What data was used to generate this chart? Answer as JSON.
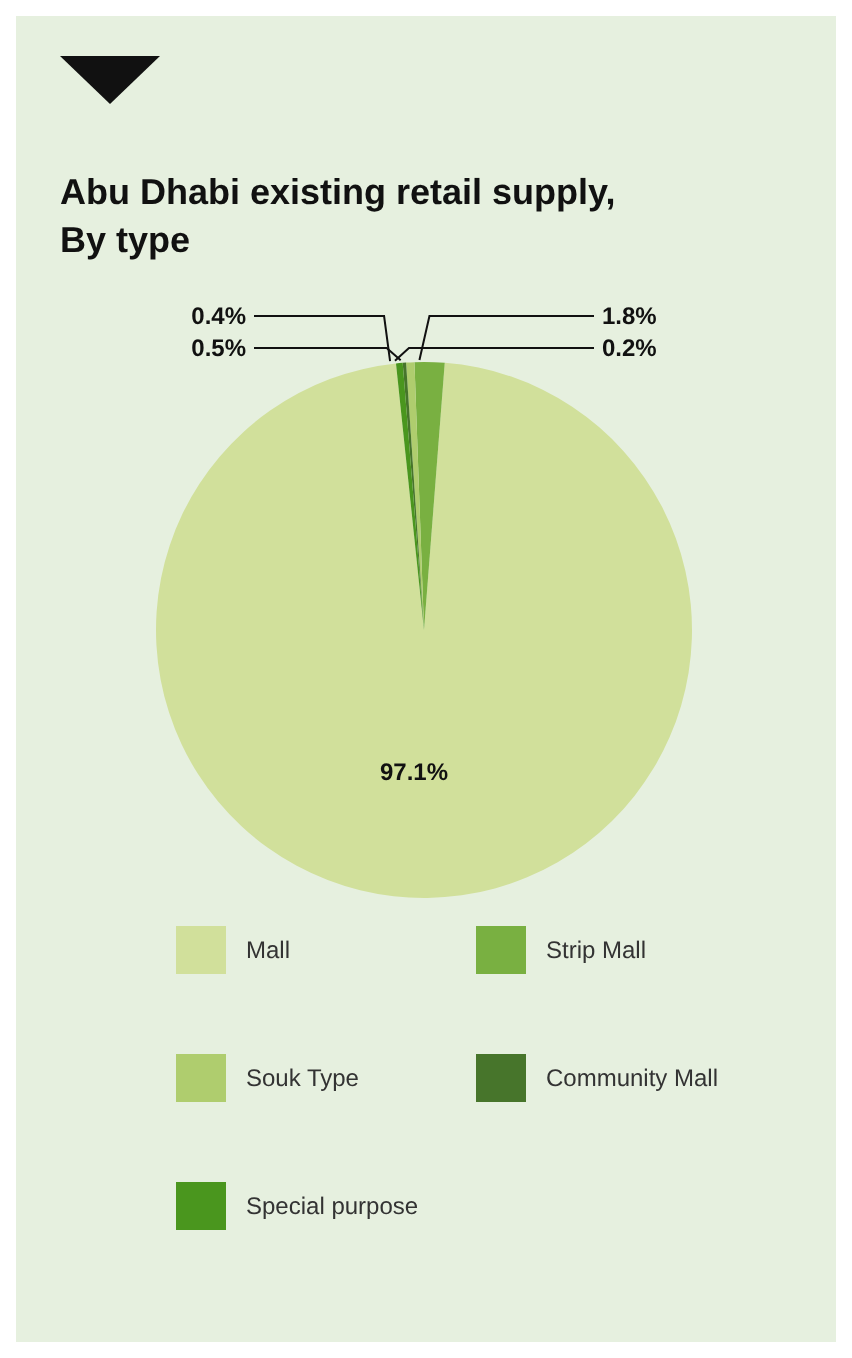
{
  "chart_data": {
    "type": "pie",
    "title": "Abu Dhabi existing retail supply,\nBy type",
    "categories": [
      "Mall",
      "Strip Mall",
      "Souk Type",
      "Community Mall",
      "Special purpose"
    ],
    "values": [
      97.1,
      1.8,
      0.5,
      0.2,
      0.4
    ],
    "value_labels": [
      "97.1%",
      "1.8%",
      "0.5%",
      "0.2%",
      "0.4%"
    ],
    "colors": [
      "#d1e09b",
      "#79b041",
      "#afcd6e",
      "#47752b",
      "#4a961e"
    ],
    "legend": "bottom"
  }
}
